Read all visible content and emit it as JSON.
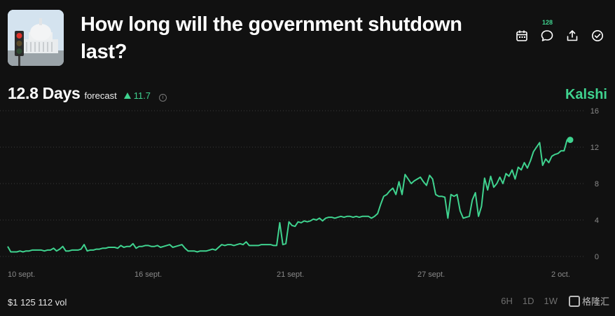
{
  "market": {
    "title": "How long will the government shutdown last?",
    "comment_count": "128"
  },
  "forecast": {
    "value": "12.8 Days",
    "label": "forecast",
    "change": "11.7"
  },
  "brand": "Kalshi",
  "volume": "$1 125 112 vol",
  "ranges": [
    "6H",
    "1D",
    "1W"
  ],
  "watermark": "格隆汇",
  "colors": {
    "accent": "#3fd38f",
    "background": "#111111"
  },
  "icons": [
    "calendar-icon",
    "comment-icon",
    "share-icon",
    "check-circle-icon"
  ],
  "chart_data": {
    "type": "line",
    "title": "",
    "xlabel": "",
    "ylabel": "",
    "ylim": [
      0,
      16
    ],
    "yticks": [
      0,
      4,
      8,
      12,
      16
    ],
    "x_tick_labels": [
      "10 sept.",
      "16 sept.",
      "21 sept.",
      "27 sept.",
      "2 oct."
    ],
    "grid": true,
    "y_axis_side": "right",
    "series": [
      {
        "values": [
          1.1,
          0.5,
          0.5,
          0.5,
          0.6,
          0.5,
          0.6,
          0.6,
          0.7,
          0.7,
          0.7,
          0.7,
          0.6,
          0.7,
          0.7,
          0.9,
          0.6,
          0.8,
          1.1,
          0.6,
          0.6,
          0.7,
          0.7,
          0.7,
          0.8,
          1.3,
          0.6,
          0.7,
          0.7,
          0.8,
          0.8,
          0.9,
          0.9,
          1.0,
          1.0,
          1.0,
          0.9,
          1.2,
          1.0,
          1.1,
          1.1,
          1.4,
          0.9,
          1.1,
          1.1,
          1.2,
          1.2,
          1.1,
          1.1,
          1.2,
          1.0,
          1.1,
          1.2,
          1.3,
          1.0,
          1.1,
          1.2,
          1.3,
          0.9,
          0.6,
          0.6,
          0.6,
          0.5,
          0.6,
          0.6,
          0.6,
          0.7,
          0.8,
          0.7,
          1.0,
          1.3,
          1.2,
          1.3,
          1.3,
          1.2,
          1.3,
          1.4,
          1.3,
          1.6,
          1.2,
          1.2,
          1.2,
          1.2,
          1.3,
          1.3,
          1.3,
          1.3,
          1.2,
          1.2,
          3.7,
          1.3,
          1.4,
          3.8,
          3.4,
          3.3,
          3.8,
          3.7,
          3.9,
          3.8,
          3.9,
          4.1,
          4.0,
          4.2,
          3.9,
          4.2,
          4.3,
          4.3,
          4.2,
          4.3,
          4.4,
          4.3,
          4.4,
          4.4,
          4.3,
          4.4,
          4.3,
          4.4,
          4.4,
          4.4,
          4.2,
          4.4,
          4.7,
          5.7,
          6.6,
          6.8,
          7.2,
          7.5,
          6.8,
          8.2,
          6.8,
          9.0,
          8.5,
          8.0,
          8.3,
          8.5,
          8.7,
          8.2,
          7.8,
          8.9,
          8.5,
          6.8,
          6.6,
          6.6,
          6.5,
          4.2,
          6.8,
          6.6,
          6.8,
          5.0,
          4.2,
          4.3,
          4.4,
          6.2,
          7.0,
          4.4,
          5.5,
          8.6,
          7.3,
          8.8,
          7.6,
          8.0,
          8.7,
          8.0,
          9.1,
          8.8,
          9.5,
          8.5,
          9.8,
          9.5,
          10.3,
          9.7,
          10.5,
          11.5,
          12.0,
          12.5,
          10.0,
          10.7,
          10.3,
          11.0,
          11.2,
          11.3,
          11.6,
          11.6,
          12.8,
          12.8
        ]
      }
    ]
  }
}
